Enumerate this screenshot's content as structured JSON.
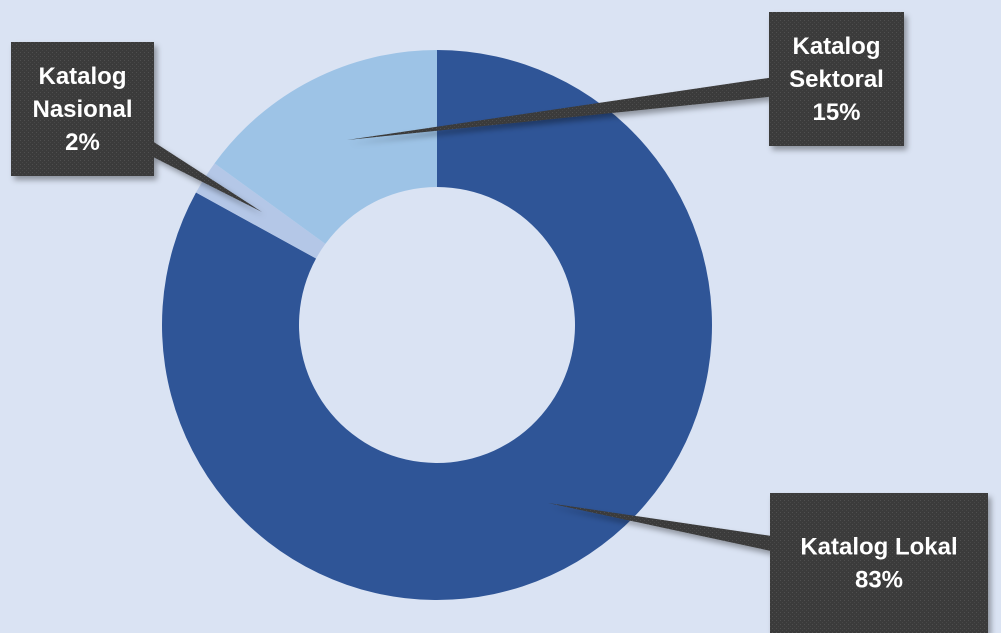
{
  "chart_data": {
    "type": "pie",
    "style": "donut",
    "title": "",
    "series": [
      {
        "label": "Katalog Lokal",
        "value": 83,
        "value_label": "83%",
        "color": "#2f5597"
      },
      {
        "label": "Katalog Nasional",
        "value": 2,
        "value_label": "2%",
        "color": "#b4c7e7"
      },
      {
        "label": "Katalog Sektoral",
        "value": 15,
        "value_label": "15%",
        "color": "#9dc3e6"
      }
    ],
    "legend": "none",
    "label_style": "dark callout boxes with leader lines",
    "label_box_color": "#3a3a3a",
    "background_color": "#dae3f3"
  }
}
